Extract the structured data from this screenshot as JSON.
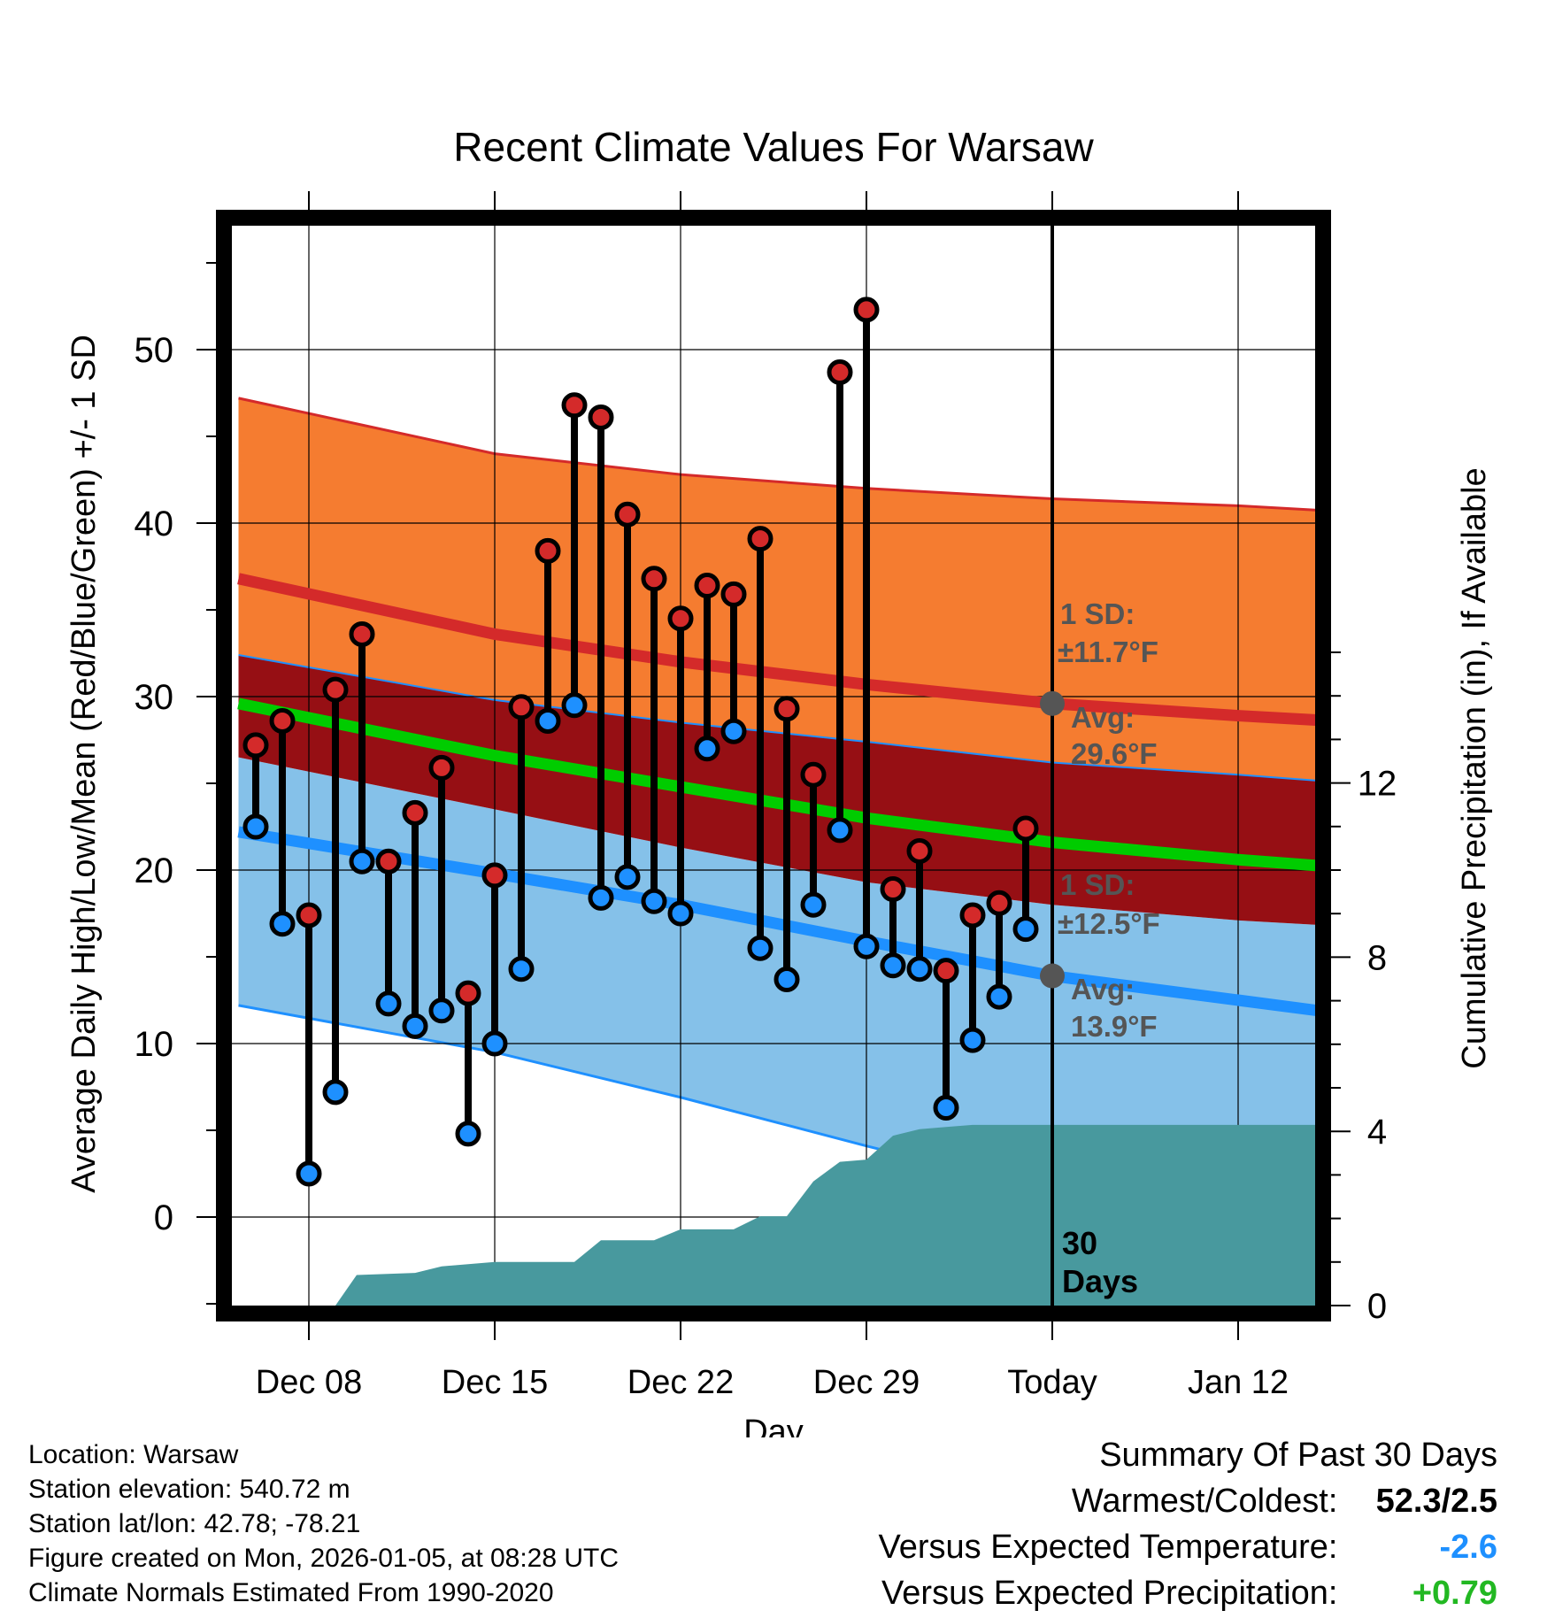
{
  "chart_data": {
    "type": "line",
    "title": "Recent Climate Values For Warsaw",
    "xlabel": "Day",
    "ylabel": "Average Daily High/Low/Mean (Red/Blue/Green) +/- 1 SD",
    "y2label": "Cumulative Precipitation (in), If Available",
    "ylim": [
      -5,
      57
    ],
    "y_ticks": [
      0,
      10,
      20,
      30,
      40,
      50
    ],
    "y2lim": [
      0,
      30
    ],
    "y2_ticks": [
      0,
      4,
      8,
      12
    ],
    "xlim": [
      -3,
      38
    ],
    "x_ticks": [
      {
        "day": 0,
        "label": "Dec 08"
      },
      {
        "day": 7,
        "label": "Dec 15"
      },
      {
        "day": 14,
        "label": "Dec 22"
      },
      {
        "day": 21,
        "label": "Dec 29"
      },
      {
        "day": 28,
        "label": "Today"
      },
      {
        "day": 35,
        "label": "Jan 12"
      }
    ],
    "today_day": 28,
    "days_label": "30 Days",
    "normals": {
      "days": [
        -2.65,
        7,
        14,
        21,
        28,
        35,
        38.5
      ],
      "high_avg": [
        36.8,
        33.6,
        32.0,
        30.7,
        29.6,
        28.9,
        28.6
      ],
      "high_sd_upper": [
        47.2,
        44.0,
        42.8,
        42.0,
        41.4,
        41.0,
        40.7
      ],
      "high_sd_lower": [
        32.4,
        29.8,
        28.5,
        27.4,
        26.2,
        25.5,
        25.1
      ],
      "low_avg": [
        22.2,
        19.8,
        18.0,
        15.9,
        13.9,
        12.5,
        11.8
      ],
      "low_sd_upper": [
        26.5,
        23.5,
        21.3,
        19.3,
        18.0,
        17.1,
        16.8
      ],
      "low_sd_lower": [
        12.2,
        9.5,
        6.9,
        4.1,
        1.4,
        -0.3,
        -1.0
      ],
      "mean_avg": [
        29.6,
        26.6,
        24.8,
        23.0,
        21.6,
        20.6,
        20.2
      ],
      "high_sd_label": "1 SD:",
      "high_sd_value": "±11.7°F",
      "high_avg_label": "Avg:",
      "high_avg_value": "29.6°F",
      "low_sd_label": "1 SD:",
      "low_sd_value": "±12.5°F",
      "low_avg_label": "Avg:",
      "low_avg_value": "13.9°F"
    },
    "series": [
      {
        "name": "Daily High",
        "color": "#d42a2a",
        "days": [
          -2,
          -1,
          0,
          1,
          2,
          3,
          4,
          5,
          6,
          7,
          8,
          9,
          10,
          11,
          12,
          13,
          14,
          15,
          16,
          17,
          18,
          19,
          20,
          21,
          22,
          23,
          24,
          25,
          26,
          27
        ],
        "values": [
          27.2,
          28.6,
          17.4,
          30.4,
          33.6,
          20.5,
          23.3,
          25.9,
          12.9,
          19.7,
          29.4,
          38.4,
          46.8,
          46.1,
          40.5,
          36.8,
          34.5,
          36.4,
          35.9,
          39.1,
          29.3,
          25.5,
          48.7,
          52.3,
          18.9,
          21.1,
          14.2,
          17.4,
          18.1,
          22.4
        ]
      },
      {
        "name": "Daily Low",
        "color": "#1e90ff",
        "days": [
          -2,
          -1,
          0,
          1,
          2,
          3,
          4,
          5,
          6,
          7,
          8,
          9,
          10,
          11,
          12,
          13,
          14,
          15,
          16,
          17,
          18,
          19,
          20,
          21,
          22,
          23,
          24,
          25,
          26,
          27
        ],
        "values": [
          22.5,
          16.9,
          2.5,
          7.2,
          20.5,
          12.3,
          11.0,
          11.9,
          4.8,
          10.0,
          14.3,
          28.6,
          29.5,
          18.4,
          19.6,
          18.2,
          17.5,
          27.0,
          28.0,
          15.5,
          13.7,
          18.0,
          22.3,
          15.6,
          14.5,
          14.3,
          6.3,
          10.2,
          12.7,
          16.6
        ]
      },
      {
        "name": "Cumulative Precipitation",
        "color": "#48999e",
        "axis": "y2",
        "days": [
          -0.3,
          1,
          1.8,
          4,
          5,
          6,
          7,
          8,
          9,
          10,
          11,
          12,
          13,
          14,
          15,
          16,
          17,
          18,
          19,
          20,
          21,
          22,
          23,
          24,
          25,
          26,
          27,
          28,
          29,
          30,
          35,
          38.5
        ],
        "values": [
          0,
          0,
          0.7,
          0.75,
          0.9,
          0.95,
          1.0,
          1.0,
          1.0,
          1.0,
          1.5,
          1.5,
          1.5,
          1.75,
          1.75,
          1.75,
          2.05,
          2.05,
          2.85,
          3.3,
          3.35,
          3.9,
          4.05,
          4.1,
          4.15,
          4.15,
          4.15,
          4.15,
          4.15,
          4.15,
          4.15,
          4.15
        ]
      }
    ]
  },
  "info": {
    "location": "Location: Warsaw",
    "elevation": "Station elevation: 540.72 m",
    "latlon": "Station lat/lon: 42.78; -78.21",
    "created": "Figure created on Mon, 2026-01-05, at 08:28 UTC",
    "normals": "Climate Normals Estimated From 1990-2020"
  },
  "summary": {
    "title": "Summary Of Past 30 Days",
    "warm_cold_label": "Warmest/Coldest:",
    "warm_cold_value": "52.3/2.5",
    "temp_label": "Versus Expected Temperature:",
    "temp_value": "-2.6",
    "temp_color": "#1e90ff",
    "precip_label": "Versus Expected Precipitation:",
    "precip_value": "+0.79",
    "precip_color": "#22b822"
  },
  "colors": {
    "high_band": "#f57c30",
    "overlap_band": "#960f14",
    "low_band": "#85c1e9",
    "high_line": "#d42a2a",
    "low_line": "#1e90ff",
    "mean_line": "#00cc00",
    "precip_fill": "#48999e",
    "annot_text": "#555555"
  }
}
